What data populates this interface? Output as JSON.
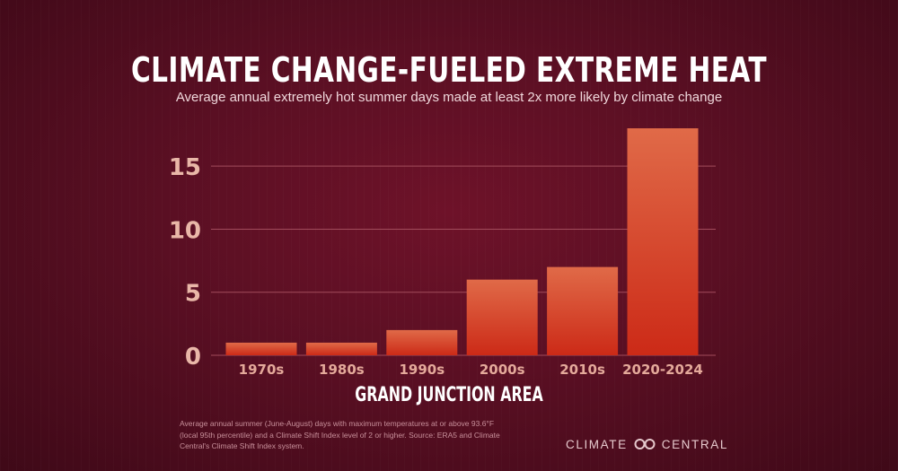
{
  "title": "CLIMATE CHANGE-FUELED EXTREME HEAT",
  "subtitle": "Average annual extremely hot summer days made at least 2x more likely by climate change",
  "footnote": "Average annual summer (June-August) days with maximum temperatures at or above 93.6°F (local 95th percentile) and a Climate Shift Index level of 2 or higher. Source: ERA5 and Climate Central's Climate Shift Index system.",
  "logo": {
    "left_text": "CLIMATE",
    "right_text": "CENTRAL",
    "icon": "infinity-icon"
  },
  "colors": {
    "bar_top": "#e06a48",
    "bar_bottom": "#cc2a17",
    "background": "#5a0f23"
  },
  "chart_data": {
    "type": "bar",
    "title": "CLIMATE CHANGE-FUELED EXTREME HEAT",
    "subtitle": "Average annual extremely hot summer days made at least 2x more likely by climate change",
    "xlabel": "GRAND JUNCTION AREA",
    "ylabel": "",
    "categories": [
      "1970s",
      "1980s",
      "1990s",
      "2000s",
      "2010s",
      "2020-2024"
    ],
    "values": [
      1,
      1,
      2,
      6,
      7,
      18
    ],
    "ylim": [
      0,
      18
    ],
    "yticks": [
      0,
      5,
      10,
      15
    ],
    "grid": true,
    "legend": "none"
  }
}
